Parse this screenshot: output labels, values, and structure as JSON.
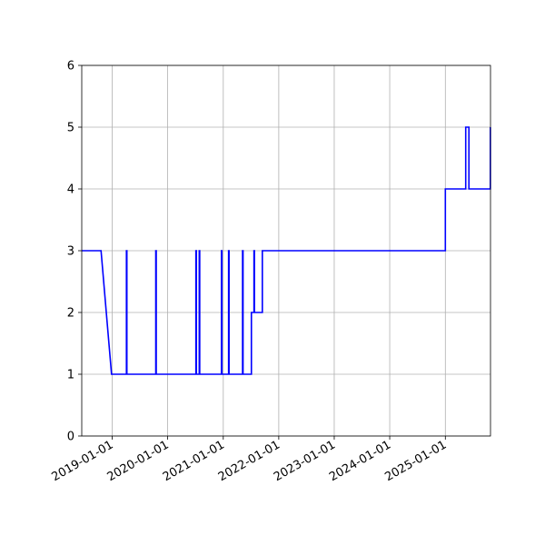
{
  "chart_data": {
    "type": "line",
    "title": "",
    "xlabel": "",
    "ylabel": "",
    "x_axis": {
      "kind": "date",
      "range": [
        "2018-06-15",
        "2025-10-25"
      ],
      "ticks": [
        "2019-01-01",
        "2020-01-01",
        "2021-01-01",
        "2022-01-01",
        "2023-01-01",
        "2024-01-01",
        "2025-01-01"
      ]
    },
    "y_axis": {
      "range": [
        0,
        6
      ],
      "ticks": [
        0,
        1,
        2,
        3,
        4,
        5,
        6
      ]
    },
    "grid": true,
    "line_color": "#0000ff",
    "series": [
      {
        "points": [
          [
            "2018-06-15",
            3
          ],
          [
            "2018-10-20",
            3
          ],
          [
            "2018-12-28",
            1
          ],
          [
            "2019-04-05",
            1
          ],
          [
            "2019-04-05",
            3
          ],
          [
            "2019-04-08",
            3
          ],
          [
            "2019-04-08",
            1
          ],
          [
            "2019-10-15",
            1
          ],
          [
            "2019-10-15",
            3
          ],
          [
            "2019-10-18",
            3
          ],
          [
            "2019-10-18",
            1
          ],
          [
            "2020-07-05",
            1
          ],
          [
            "2020-07-05",
            3
          ],
          [
            "2020-07-08",
            3
          ],
          [
            "2020-07-08",
            1
          ],
          [
            "2020-07-27",
            1
          ],
          [
            "2020-07-27",
            3
          ],
          [
            "2020-07-30",
            3
          ],
          [
            "2020-07-30",
            1
          ],
          [
            "2020-12-20",
            1
          ],
          [
            "2020-12-20",
            3
          ],
          [
            "2020-12-23",
            3
          ],
          [
            "2020-12-23",
            1
          ],
          [
            "2021-02-05",
            1
          ],
          [
            "2021-02-05",
            3
          ],
          [
            "2021-02-08",
            3
          ],
          [
            "2021-02-08",
            1
          ],
          [
            "2021-05-08",
            1
          ],
          [
            "2021-05-08",
            3
          ],
          [
            "2021-05-11",
            3
          ],
          [
            "2021-05-11",
            1
          ],
          [
            "2021-07-05",
            1
          ],
          [
            "2021-07-05",
            2
          ],
          [
            "2021-07-22",
            2
          ],
          [
            "2021-07-22",
            3
          ],
          [
            "2021-07-25",
            3
          ],
          [
            "2021-07-25",
            2
          ],
          [
            "2021-09-15",
            2
          ],
          [
            "2021-09-15",
            3
          ],
          [
            "2025-01-01",
            3
          ],
          [
            "2025-01-01",
            4
          ],
          [
            "2025-05-15",
            4
          ],
          [
            "2025-05-15",
            5
          ],
          [
            "2025-06-05",
            5
          ],
          [
            "2025-06-05",
            4
          ],
          [
            "2025-10-24",
            4
          ],
          [
            "2025-10-24",
            5
          ]
        ]
      }
    ]
  }
}
